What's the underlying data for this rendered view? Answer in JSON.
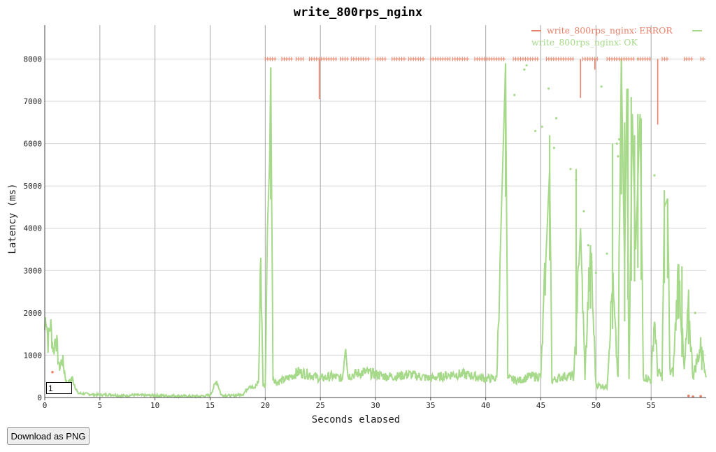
{
  "chart_data": {
    "type": "line",
    "title": "write_800rps_nginx",
    "xlabel": "Seconds elapsed",
    "ylabel": "Latency (ms)",
    "xlim": [
      0,
      60
    ],
    "ylim": [
      0,
      8800
    ],
    "x_ticks": [
      0,
      5,
      10,
      15,
      20,
      25,
      30,
      35,
      40,
      45,
      50,
      55
    ],
    "y_ticks": [
      0,
      1000,
      2000,
      3000,
      4000,
      5000,
      6000,
      7000,
      8000
    ],
    "grid": true,
    "legend_position": "top-right",
    "series": [
      {
        "name": "write_800rps_nginx: ERROR",
        "label": "write_800rps_nginx∶ ERROR",
        "color": "#e8826b",
        "baseline": 8000,
        "error_bursts": [
          [
            20.0,
            21.0
          ],
          [
            21.5,
            22.5
          ],
          [
            22.8,
            23.5
          ],
          [
            24.0,
            26.5
          ],
          [
            26.8,
            27.6
          ],
          [
            27.8,
            29.5
          ],
          [
            30.0,
            31.0
          ],
          [
            31.5,
            32.8
          ],
          [
            33.0,
            34.5
          ],
          [
            35.0,
            36.8
          ],
          [
            37.0,
            38.5
          ],
          [
            39.0,
            41.8
          ],
          [
            42.5,
            44.8
          ],
          [
            45.5,
            48.0
          ],
          [
            48.8,
            50.2
          ],
          [
            51.0,
            53.5
          ],
          [
            53.8,
            55.0
          ],
          [
            56.0,
            56.6
          ],
          [
            58.0,
            58.8
          ],
          [
            59.5,
            59.9
          ]
        ],
        "dips": [
          [
            24.9,
            7050
          ],
          [
            48.6,
            7080
          ],
          [
            55.6,
            6450
          ],
          [
            49.9,
            7750
          ]
        ],
        "low_points": [
          [
            58.4,
            40
          ],
          [
            58.8,
            20
          ],
          [
            59.5,
            30
          ],
          [
            0.7,
            600
          ],
          [
            1.2,
            300
          ]
        ]
      },
      {
        "name": "write_800rps_nginx: OK",
        "label": "write_800rps_nginx∶ OK",
        "color": "#a6d98a",
        "points": [
          [
            0,
            1600
          ],
          [
            0.1,
            2100
          ],
          [
            0.3,
            1300
          ],
          [
            0.5,
            1750
          ],
          [
            0.8,
            1100
          ],
          [
            1.0,
            1500
          ],
          [
            1.3,
            700
          ],
          [
            1.6,
            900
          ],
          [
            2.0,
            300
          ],
          [
            2.5,
            450
          ],
          [
            3.0,
            100
          ],
          [
            4.0,
            80
          ],
          [
            5.0,
            60
          ],
          [
            6.0,
            70
          ],
          [
            7.0,
            40
          ],
          [
            8.0,
            60
          ],
          [
            9.0,
            50
          ],
          [
            10.0,
            50
          ],
          [
            11.0,
            40
          ],
          [
            12.0,
            40
          ],
          [
            13.0,
            30
          ],
          [
            14.0,
            30
          ],
          [
            15.0,
            50
          ],
          [
            15.6,
            400
          ],
          [
            16.0,
            60
          ],
          [
            17.0,
            40
          ],
          [
            18.0,
            80
          ],
          [
            18.6,
            300
          ],
          [
            19.0,
            200
          ],
          [
            19.4,
            400
          ],
          [
            19.6,
            3300
          ],
          [
            19.8,
            300
          ],
          [
            20.0,
            250
          ],
          [
            20.2,
            4000
          ],
          [
            20.4,
            5600
          ],
          [
            20.5,
            7800
          ],
          [
            20.7,
            500
          ],
          [
            21.0,
            350
          ],
          [
            22.0,
            450
          ],
          [
            23.0,
            600
          ],
          [
            24.0,
            550
          ],
          [
            25.0,
            450
          ],
          [
            26.0,
            500
          ],
          [
            27.0,
            450
          ],
          [
            27.3,
            1350
          ],
          [
            27.5,
            500
          ],
          [
            28.0,
            550
          ],
          [
            29.0,
            600
          ],
          [
            30.0,
            550
          ],
          [
            31.0,
            500
          ],
          [
            32.0,
            500
          ],
          [
            33.0,
            550
          ],
          [
            34.0,
            500
          ],
          [
            35.0,
            450
          ],
          [
            36.0,
            500
          ],
          [
            37.0,
            550
          ],
          [
            38.0,
            550
          ],
          [
            39.0,
            500
          ],
          [
            40.0,
            450
          ],
          [
            41.0,
            450
          ],
          [
            41.8,
            7900
          ],
          [
            42.0,
            450
          ],
          [
            43.0,
            400
          ],
          [
            44.0,
            500
          ],
          [
            45.0,
            500
          ],
          [
            45.8,
            5400
          ],
          [
            46.0,
            400
          ],
          [
            47.0,
            500
          ],
          [
            48.0,
            500
          ],
          [
            48.6,
            4000
          ],
          [
            49.0,
            500
          ],
          [
            49.5,
            3500
          ],
          [
            50.0,
            300
          ],
          [
            51.0,
            250
          ],
          [
            51.5,
            2700
          ],
          [
            52.0,
            400
          ],
          [
            52.3,
            8000
          ],
          [
            52.6,
            3000
          ],
          [
            52.8,
            7300
          ],
          [
            53.0,
            400
          ],
          [
            53.3,
            6700
          ],
          [
            53.6,
            3500
          ],
          [
            54.0,
            6700
          ],
          [
            54.3,
            500
          ],
          [
            55.0,
            400
          ],
          [
            55.3,
            1900
          ],
          [
            55.6,
            600
          ],
          [
            56.0,
            500
          ],
          [
            56.2,
            4500
          ],
          [
            56.5,
            4700
          ],
          [
            56.7,
            600
          ],
          [
            57.0,
            600
          ],
          [
            57.5,
            3100
          ],
          [
            58.0,
            600
          ],
          [
            58.4,
            2100
          ],
          [
            58.8,
            500
          ],
          [
            59.5,
            1200
          ],
          [
            60.0,
            600
          ]
        ],
        "spikes": [
          [
            20.5,
            7800
          ],
          [
            41.8,
            7900
          ],
          [
            45.8,
            6200
          ],
          [
            48.2,
            5400
          ],
          [
            49.5,
            3600
          ],
          [
            51.5,
            6000
          ],
          [
            52.3,
            8000
          ],
          [
            52.6,
            6500
          ],
          [
            52.9,
            7300
          ],
          [
            53.2,
            7100
          ],
          [
            53.5,
            6200
          ],
          [
            53.8,
            6700
          ],
          [
            54.1,
            6600
          ],
          [
            56.2,
            4900
          ],
          [
            56.5,
            4700
          ],
          [
            57.5,
            3150
          ],
          [
            57.8,
            3100
          ],
          [
            58.4,
            2100
          ],
          [
            59.6,
            1200
          ]
        ],
        "scatter": [
          [
            42.6,
            7150
          ],
          [
            43.5,
            7750
          ],
          [
            43.7,
            7850
          ],
          [
            44.5,
            6300
          ],
          [
            45.1,
            6400
          ],
          [
            45.7,
            7300
          ],
          [
            46.2,
            5900
          ],
          [
            46.4,
            6600
          ],
          [
            47.7,
            5400
          ],
          [
            48.2,
            5150
          ],
          [
            48.9,
            4400
          ],
          [
            49.3,
            3600
          ],
          [
            49.6,
            3200
          ],
          [
            50.5,
            7350
          ],
          [
            51.0,
            3400
          ],
          [
            51.9,
            6000
          ],
          [
            52.1,
            6100
          ],
          [
            50.0,
            2950
          ],
          [
            52.0,
            5700
          ],
          [
            53.8,
            8000
          ],
          [
            55.3,
            5250
          ],
          [
            59.0,
            2000
          ]
        ]
      }
    ]
  },
  "controls": {
    "smoothing_value": "1",
    "download_label": "Download as PNG"
  }
}
